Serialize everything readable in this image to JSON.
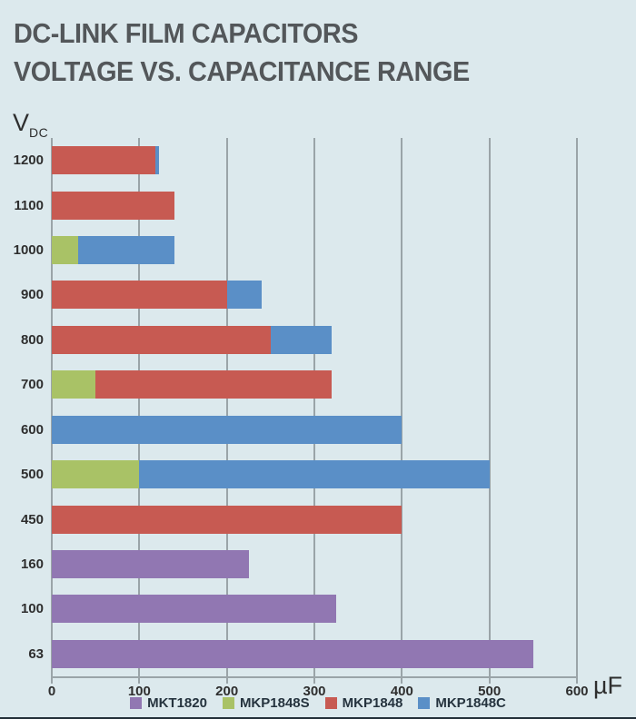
{
  "title": {
    "line1": "DC-LINK FILM CAPACITORS",
    "line2": "VOLTAGE VS. CAPACITANCE RANGE"
  },
  "y_axis_unit": {
    "main": "V",
    "sub": "DC"
  },
  "x_axis_unit": "µF",
  "colors": {
    "background": "#dce9ed",
    "grid": "#9aa4a8",
    "title_text": "#53575a",
    "axis_label_text": "#2e2e2e",
    "legend_text": "#25333e",
    "series": {
      "MKT1820": "#9177b2",
      "MKP1848S": "#a9c266",
      "MKP1848": "#c75a52",
      "MKP1848C": "#5a8fc7"
    }
  },
  "legend": [
    {
      "label": "MKT1820"
    },
    {
      "label": "MKP1848S"
    },
    {
      "label": "MKP1848"
    },
    {
      "label": "MKP1848C"
    }
  ],
  "chart_data": {
    "type": "bar",
    "variant": "horizontal-stacked",
    "title": "DC-LINK FILM CAPACITORS VOLTAGE VS. CAPACITANCE RANGE",
    "xlabel": "µF",
    "ylabel": "VDC",
    "xlim": [
      0,
      600
    ],
    "xticks": [
      0,
      100,
      200,
      300,
      400,
      500,
      600
    ],
    "grid": true,
    "legend_position": "bottom",
    "categories": [
      "1200",
      "1100",
      "1000",
      "900",
      "800",
      "700",
      "600",
      "500",
      "450",
      "160",
      "100",
      "63"
    ],
    "rows": [
      {
        "voltage": "1200",
        "segments": [
          {
            "series": "MKP1848",
            "from": 0,
            "to": 118
          },
          {
            "series": "MKP1848C",
            "from": 118,
            "to": 122
          }
        ]
      },
      {
        "voltage": "1100",
        "segments": [
          {
            "series": "MKP1848",
            "from": 0,
            "to": 140
          }
        ]
      },
      {
        "voltage": "1000",
        "segments": [
          {
            "series": "MKP1848S",
            "from": 0,
            "to": 30
          },
          {
            "series": "MKP1848C",
            "from": 30,
            "to": 140
          }
        ]
      },
      {
        "voltage": "900",
        "segments": [
          {
            "series": "MKP1848",
            "from": 0,
            "to": 200
          },
          {
            "series": "MKP1848C",
            "from": 200,
            "to": 240
          }
        ]
      },
      {
        "voltage": "800",
        "segments": [
          {
            "series": "MKP1848",
            "from": 0,
            "to": 250
          },
          {
            "series": "MKP1848C",
            "from": 250,
            "to": 320
          }
        ]
      },
      {
        "voltage": "700",
        "segments": [
          {
            "series": "MKP1848S",
            "from": 0,
            "to": 50
          },
          {
            "series": "MKP1848",
            "from": 50,
            "to": 320
          }
        ]
      },
      {
        "voltage": "600",
        "segments": [
          {
            "series": "MKP1848C",
            "from": 0,
            "to": 400
          }
        ]
      },
      {
        "voltage": "500",
        "segments": [
          {
            "series": "MKP1848S",
            "from": 0,
            "to": 100
          },
          {
            "series": "MKP1848C",
            "from": 100,
            "to": 500
          }
        ]
      },
      {
        "voltage": "450",
        "segments": [
          {
            "series": "MKP1848",
            "from": 0,
            "to": 400
          }
        ]
      },
      {
        "voltage": "160",
        "segments": [
          {
            "series": "MKT1820",
            "from": 0,
            "to": 225
          }
        ]
      },
      {
        "voltage": "100",
        "segments": [
          {
            "series": "MKT1820",
            "from": 0,
            "to": 325
          }
        ]
      },
      {
        "voltage": "63",
        "segments": [
          {
            "series": "MKT1820",
            "from": 0,
            "to": 550
          }
        ]
      }
    ]
  }
}
